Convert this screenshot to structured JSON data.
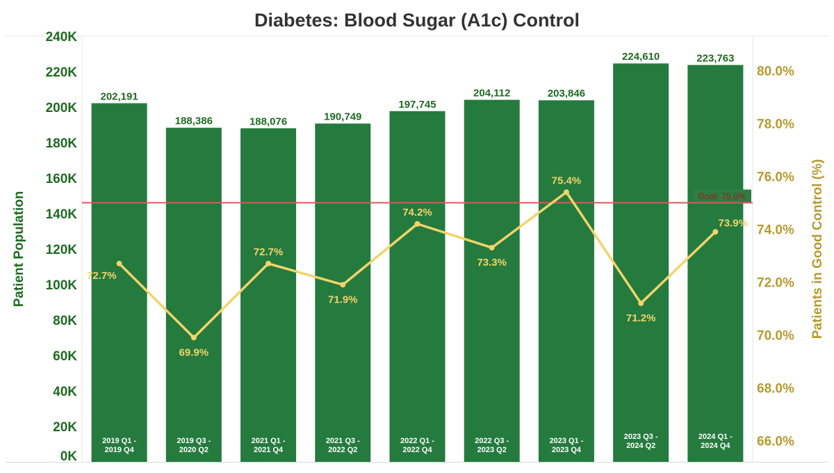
{
  "colors": {
    "bar": "#257A3E",
    "left_axis": "#1E6B22",
    "right_axis": "#B79A2E",
    "line": "#F2D46A",
    "pct_label": "#F2D46A",
    "goal_line": "#D9585B",
    "goal_box": "#2E7D44",
    "goal_text": "#9E1B1B",
    "title": "#333333",
    "bar_label": "#1E6B22"
  },
  "chart_data": {
    "type": "bar",
    "title": "Diabetes: Blood Sugar (A1c) Control",
    "categories": [
      [
        "2019 Q1 -",
        "2019 Q4"
      ],
      [
        "2019 Q3 -",
        "2020 Q2"
      ],
      [
        "2021 Q1 -",
        "2021 Q4"
      ],
      [
        "2021 Q3 -",
        "2022 Q2"
      ],
      [
        "2022 Q1 -",
        "2022 Q4"
      ],
      [
        "2022 Q3 -",
        "2023 Q2"
      ],
      [
        "2023 Q1 -",
        "2023 Q4"
      ],
      [
        "2023 Q3 -",
        "2024 Q2"
      ],
      [
        "2024 Q1 -",
        "2024 Q4"
      ]
    ],
    "series": [
      {
        "name": "Patient Population",
        "type": "bar",
        "axis": "left",
        "values": [
          202191,
          188386,
          188076,
          190749,
          197745,
          204112,
          203846,
          224610,
          223763
        ],
        "labels": [
          "202,191",
          "188,386",
          "188,076",
          "190,749",
          "197,745",
          "204,112",
          "203,846",
          "224,610",
          "223,763"
        ]
      },
      {
        "name": "Patients in Good Control (%)",
        "type": "line",
        "axis": "right",
        "values": [
          72.7,
          69.9,
          72.7,
          71.9,
          74.2,
          73.3,
          75.4,
          71.2,
          73.9
        ],
        "labels": [
          "72.7%",
          "69.9%",
          "72.7%",
          "71.9%",
          "74.2%",
          "73.3%",
          "75.4%",
          "71.2%",
          "73.9%"
        ]
      }
    ],
    "ylabel": "Patient Population",
    "y2label": "Patients in Good Control (%)",
    "ylim": [
      0,
      240000
    ],
    "yticks": [
      0,
      20000,
      40000,
      60000,
      80000,
      100000,
      120000,
      140000,
      160000,
      180000,
      200000,
      220000,
      240000
    ],
    "ytick_labels": [
      "0K",
      "20K",
      "40K",
      "60K",
      "80K",
      "100K",
      "120K",
      "140K",
      "160K",
      "180K",
      "200K",
      "220K",
      "240K"
    ],
    "y2lim": [
      65.2,
      81.3
    ],
    "y2ticks": [
      66,
      68,
      70,
      72,
      74,
      76,
      78,
      80
    ],
    "y2tick_labels": [
      "66.0%",
      "68.0%",
      "70.0%",
      "72.0%",
      "74.0%",
      "76.0%",
      "78.0%",
      "80.0%"
    ],
    "goal": {
      "value": 75.0,
      "label": "Goal: 75.0%"
    },
    "grid": false,
    "legend": "none"
  }
}
